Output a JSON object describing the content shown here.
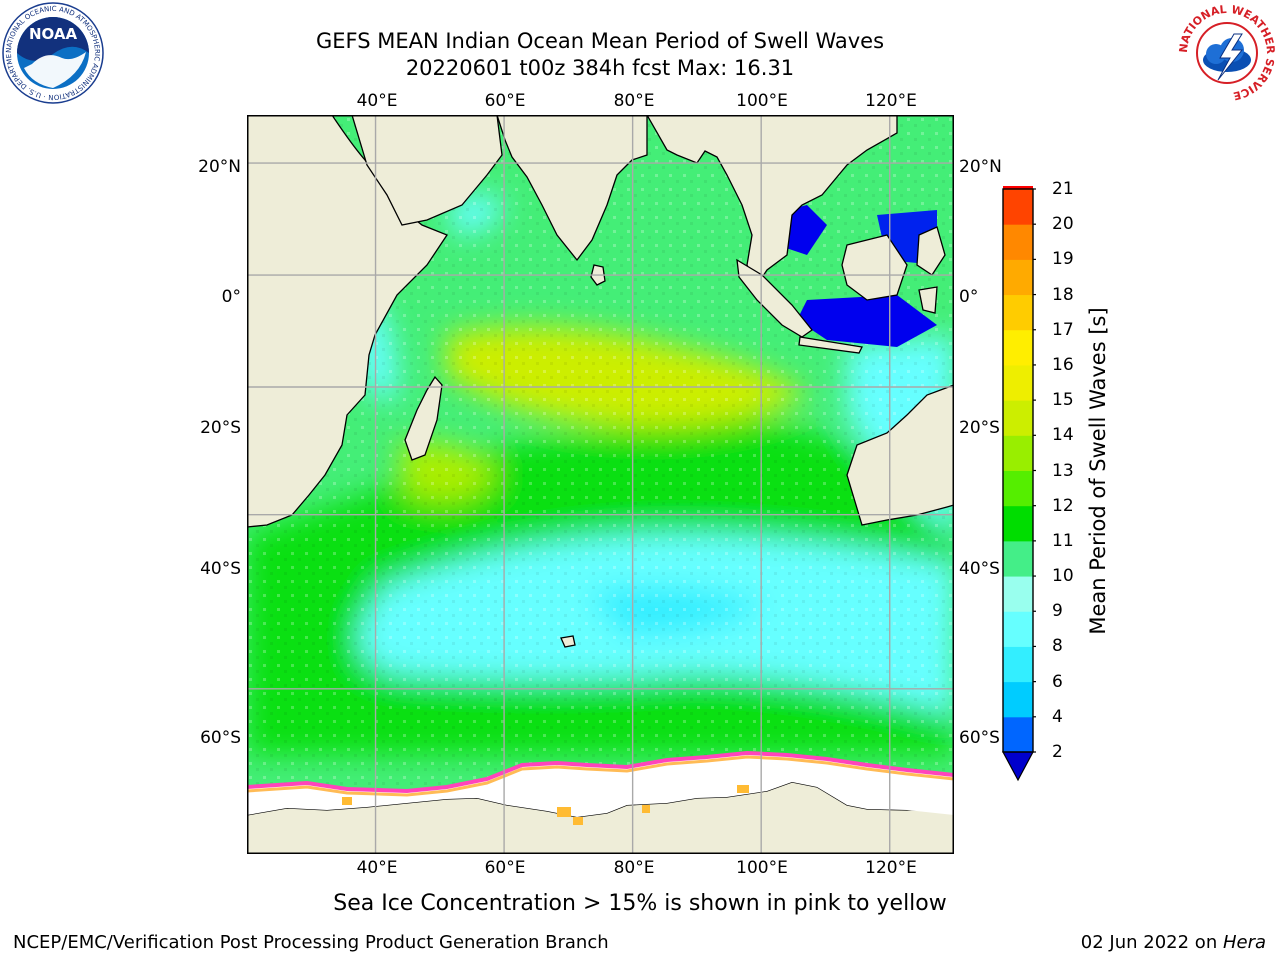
{
  "title_line1": "GEFS MEAN Indian Ocean Mean Period of Swell Waves",
  "title_line2": "20220601 t00z 384h fcst   Max: 16.31",
  "map": {
    "lon_ticks": [
      "40°E",
      "60°E",
      "80°E",
      "100°E",
      "120°E"
    ],
    "lat_ticks": [
      "20°N",
      "0°",
      "20°S",
      "40°S",
      "60°S"
    ],
    "lon_values": [
      40,
      60,
      80,
      100,
      120
    ],
    "lat_values": [
      20,
      0,
      -20,
      -40,
      -60
    ],
    "lon_range": [
      20,
      130
    ],
    "lat_range": [
      -72,
      28
    ]
  },
  "colorbar": {
    "label": "Mean Period of Swell Waves [s]",
    "ticks": [
      "2",
      "4",
      "6",
      "8",
      "9",
      "10",
      "11",
      "12",
      "13",
      "14",
      "15",
      "16",
      "17",
      "18",
      "19",
      "20",
      "21"
    ],
    "colors": [
      "#0066ff",
      "#00ccff",
      "#33eeff",
      "#66ffff",
      "#99ffee",
      "#44ee88",
      "#00dd00",
      "#55ee00",
      "#99ee00",
      "#ccee00",
      "#eeee00",
      "#ffee00",
      "#ffcc00",
      "#ffaa00",
      "#ff8800",
      "#ff4400",
      "#ff0000"
    ],
    "under_color": "#0000cc"
  },
  "note": "Sea Ice Concentration > 15% is shown in pink to yellow",
  "footer_left": "NCEP/EMC/Verification Post Processing Product Generation Branch",
  "footer_right_date": "02 Jun 2022 on ",
  "footer_right_machine": "Hera",
  "logos": {
    "noaa_text": "NOAA",
    "noaa_ring": "NATIONAL OCEANIC AND ATMOSPHERIC ADMINISTRATION · U.S. DEPARTMENT OF COMMERCE",
    "nws_ring": "NATIONAL WEATHER SERVICE"
  }
}
